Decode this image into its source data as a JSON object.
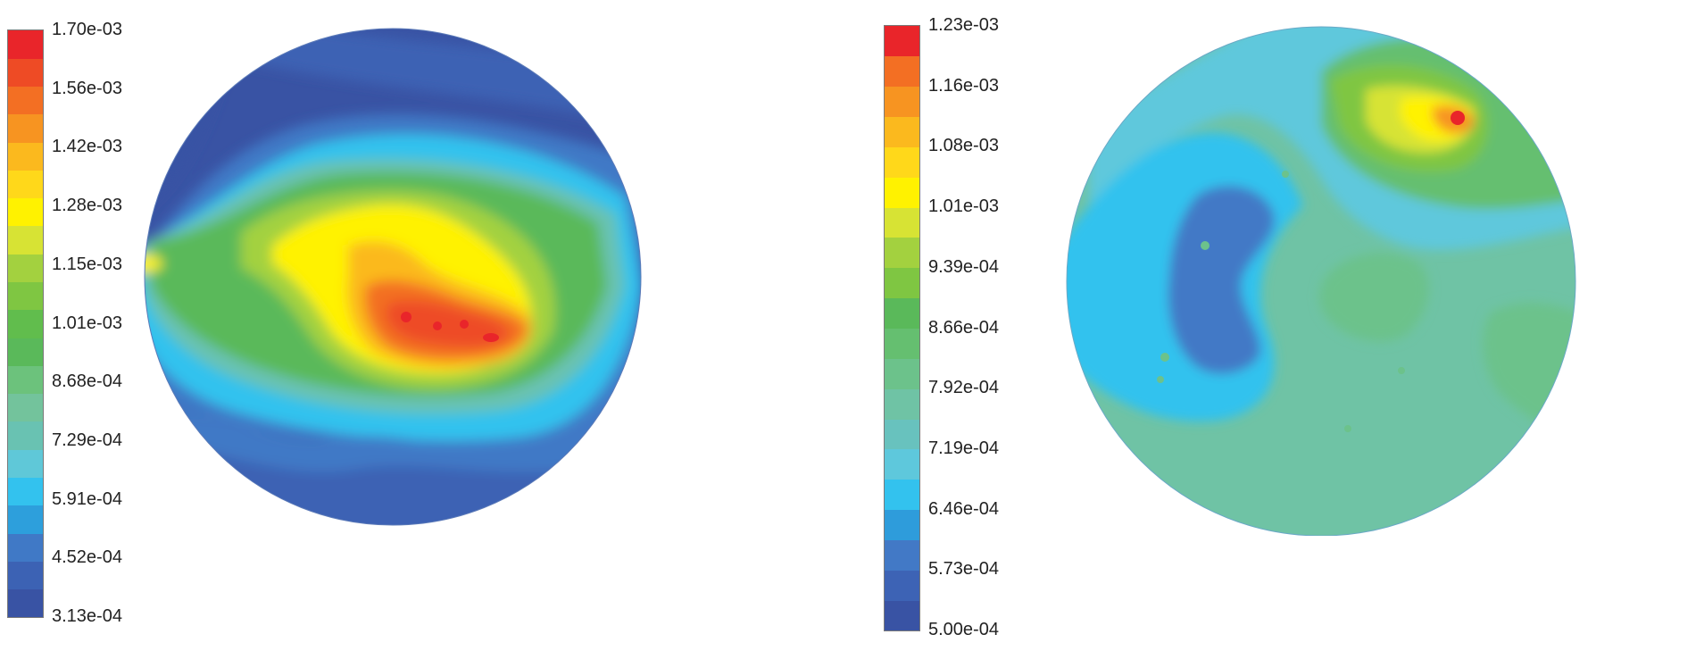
{
  "chart_data": [
    {
      "type": "heatmap",
      "title": "",
      "xlabel": "",
      "ylabel": "",
      "colorbar": {
        "min": 0.000313,
        "max": 0.0017,
        "levels": 21,
        "tick_labels": [
          "1.70e-03",
          "1.56e-03",
          "1.42e-03",
          "1.28e-03",
          "1.15e-03",
          "1.01e-03",
          "8.68e-04",
          "7.29e-04",
          "5.91e-04",
          "4.52e-04",
          "3.13e-04"
        ],
        "colors": [
          "#3953a4",
          "#3c62b4",
          "#4079c6",
          "#2d9fdc",
          "#33c2ee",
          "#5fc8d8",
          "#69c2b2",
          "#73c39c",
          "#6cc27c",
          "#5ab95a",
          "#61bd4d",
          "#7fc642",
          "#a3d13f",
          "#d7e334",
          "#fff200",
          "#ffd81a",
          "#fbb91e",
          "#f79421",
          "#f36f23",
          "#ee4b25",
          "#e9252a"
        ]
      },
      "field": {
        "shape": "circle",
        "description_values": "peak ~1.70e-03 at center-right, low ~3.13e-04 at top-left and bottom edges"
      }
    },
    {
      "type": "heatmap",
      "title": "",
      "xlabel": "",
      "ylabel": "",
      "colorbar": {
        "min": 0.0005,
        "max": 0.00123,
        "levels": 20,
        "tick_labels": [
          "1.23e-03",
          "1.16e-03",
          "1.08e-03",
          "1.01e-03",
          "9.39e-04",
          "8.66e-04",
          "7.92e-04",
          "7.19e-04",
          "6.46e-04",
          "5.73e-04",
          "5.00e-04"
        ],
        "colors": [
          "#3953a4",
          "#3d63b5",
          "#4279c6",
          "#2e9cdb",
          "#33c2ee",
          "#5ec8dc",
          "#68c2be",
          "#6fc3a5",
          "#6cc28b",
          "#65bf70",
          "#5ab95a",
          "#7fc642",
          "#a3d13f",
          "#d7e334",
          "#fff200",
          "#ffd81a",
          "#fbb91e",
          "#f79421",
          "#f36f23",
          "#e9252a"
        ]
      },
      "field": {
        "shape": "circle",
        "description_values": "hot spot ~1.23e-03 at top-right, low ~5.73e-04 left-center"
      }
    }
  ]
}
